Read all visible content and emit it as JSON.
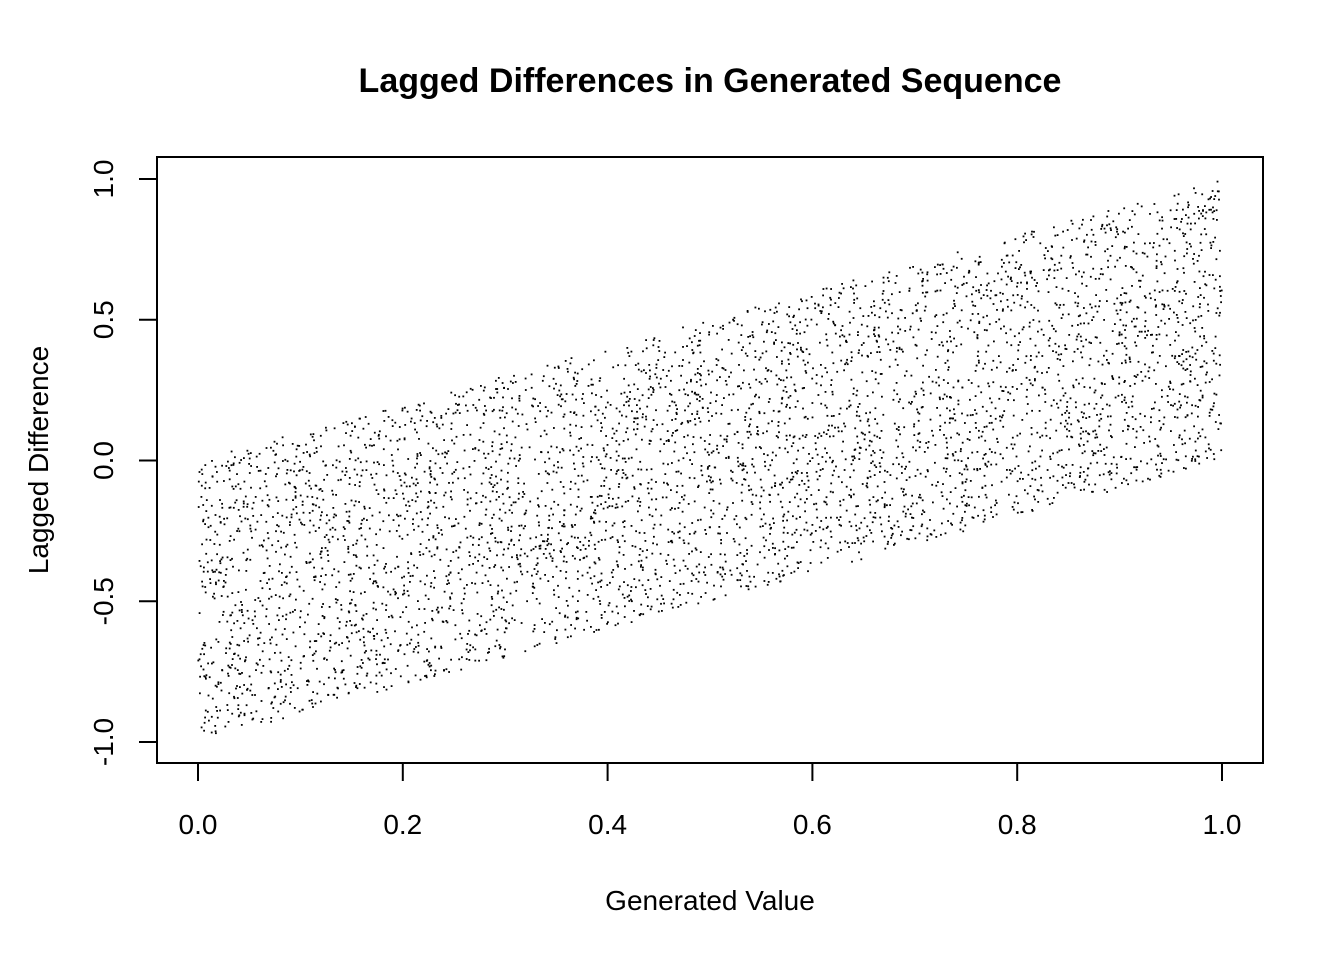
{
  "chart_data": {
    "type": "scatter",
    "title": "Lagged Differences in Generated Sequence",
    "xlabel": "Generated Value",
    "ylabel": "Lagged Difference",
    "xlim": [
      0.0,
      1.0
    ],
    "ylim": [
      -1.0,
      1.0
    ],
    "x_ticks": [
      "0.0",
      "0.2",
      "0.4",
      "0.6",
      "0.8",
      "1.0"
    ],
    "y_ticks": [
      "-1.0",
      "-0.5",
      "0.0",
      "0.5",
      "1.0"
    ],
    "grid": false,
    "legend": "none",
    "point_color": "#000000",
    "point_count": 5000,
    "distribution": "points fill the band between y = x - 1 and y = x (uniform random x in [0,1])"
  }
}
